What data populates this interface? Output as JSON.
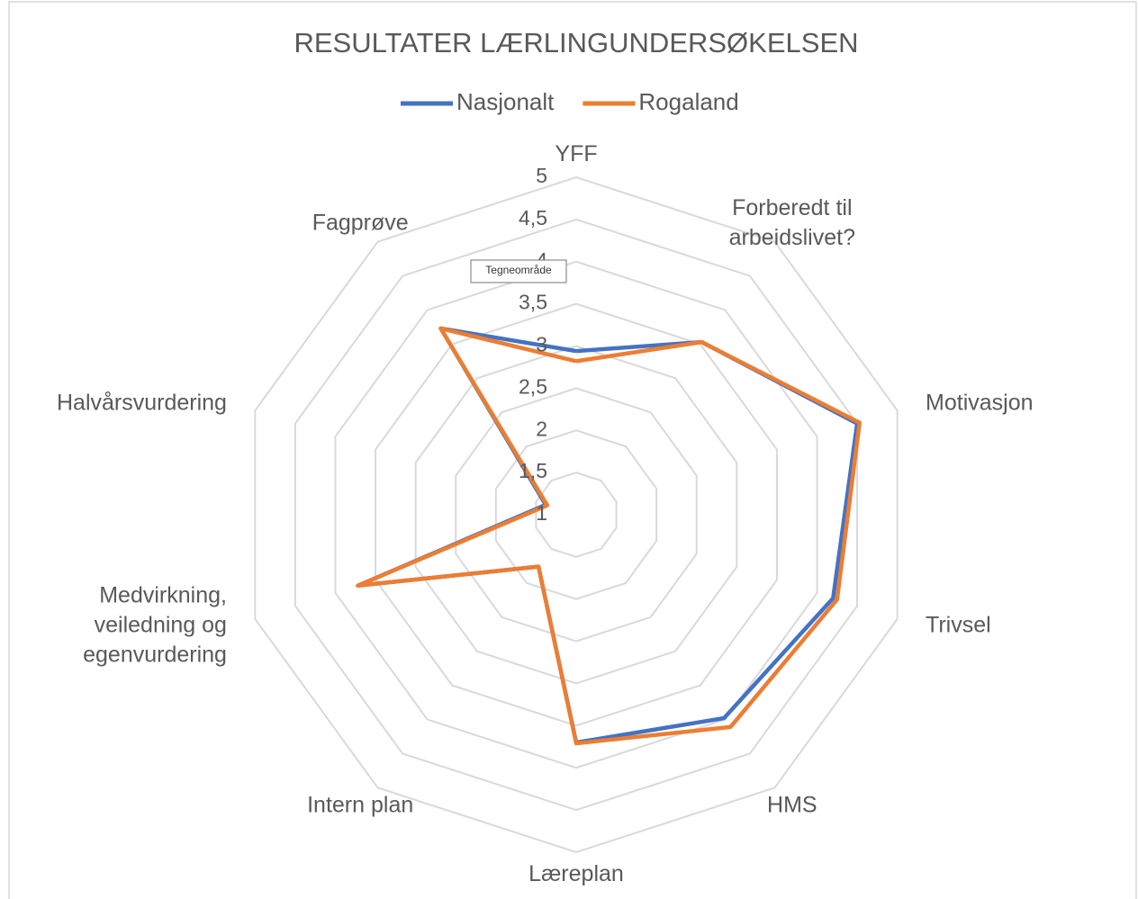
{
  "chart_data": {
    "type": "radar",
    "title": "RESULTATER LÆRLINGUNDERSØKELSEN",
    "categories": [
      "YFF",
      "Forberedt til\narbeidslivet?",
      "Motivasjon",
      "Trivsel",
      "HMS",
      "Læreplan",
      "Intern plan",
      "Medvirkning,\nveiledning og\negenvurdering",
      "Halvårsvurdering",
      "Fagprøve"
    ],
    "series": [
      {
        "name": "Nasjonalt",
        "color": "#4472c4",
        "values": [
          2.94,
          3.53,
          4.5,
          4.2,
          3.98,
          3.7,
          1.76,
          3.72,
          1.38,
          3.73
        ]
      },
      {
        "name": "Rogaland",
        "color": "#ed7d31",
        "values": [
          2.82,
          3.53,
          4.53,
          4.25,
          4.11,
          3.71,
          1.76,
          3.72,
          1.36,
          3.73
        ]
      }
    ],
    "ylim": [
      1,
      5
    ],
    "yticks": [
      1,
      {
        "value": 1.5,
        "label": "1,5"
      },
      2,
      {
        "value": 2.5,
        "label": "2,5"
      },
      3,
      {
        "value": 3.5,
        "label": "3,5"
      },
      4,
      {
        "value": 4.5,
        "label": "4,5"
      },
      5
    ],
    "grid": true,
    "legend": "top",
    "tooltip": "Tegneområde"
  }
}
